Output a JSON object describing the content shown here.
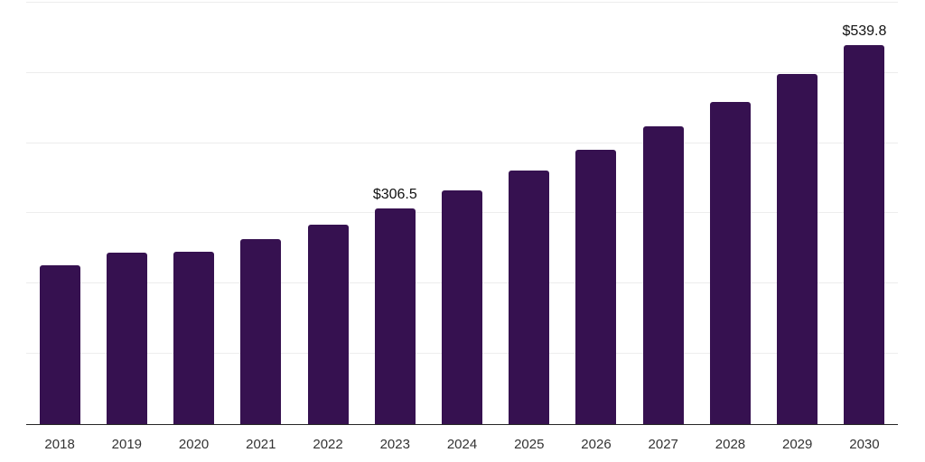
{
  "chart": {
    "bar_color": "#361150",
    "axis_color": "#262626",
    "gridline_color": "#ededed",
    "tick_label_color": "#333333",
    "data_label_color": "#111111",
    "background_color": "#ffffff"
  },
  "chart_data": {
    "type": "bar",
    "title": "",
    "xlabel": "",
    "ylabel": "",
    "categories": [
      "2018",
      "2019",
      "2020",
      "2021",
      "2022",
      "2023",
      "2024",
      "2025",
      "2026",
      "2027",
      "2028",
      "2029",
      "2030"
    ],
    "values": [
      226.5,
      243.5,
      245.0,
      263.0,
      284.0,
      306.5,
      332.3,
      360.3,
      390.6,
      423.5,
      459.1,
      497.8,
      539.8
    ],
    "data_labels": [
      null,
      null,
      null,
      null,
      null,
      "$306.5",
      null,
      null,
      null,
      null,
      null,
      null,
      "$539.8"
    ],
    "ylim": [
      0,
      600
    ],
    "gridline_interval": 100,
    "grid": true,
    "legend": false,
    "y_axis_tick_labels_visible": false,
    "currency_prefix": "$"
  }
}
